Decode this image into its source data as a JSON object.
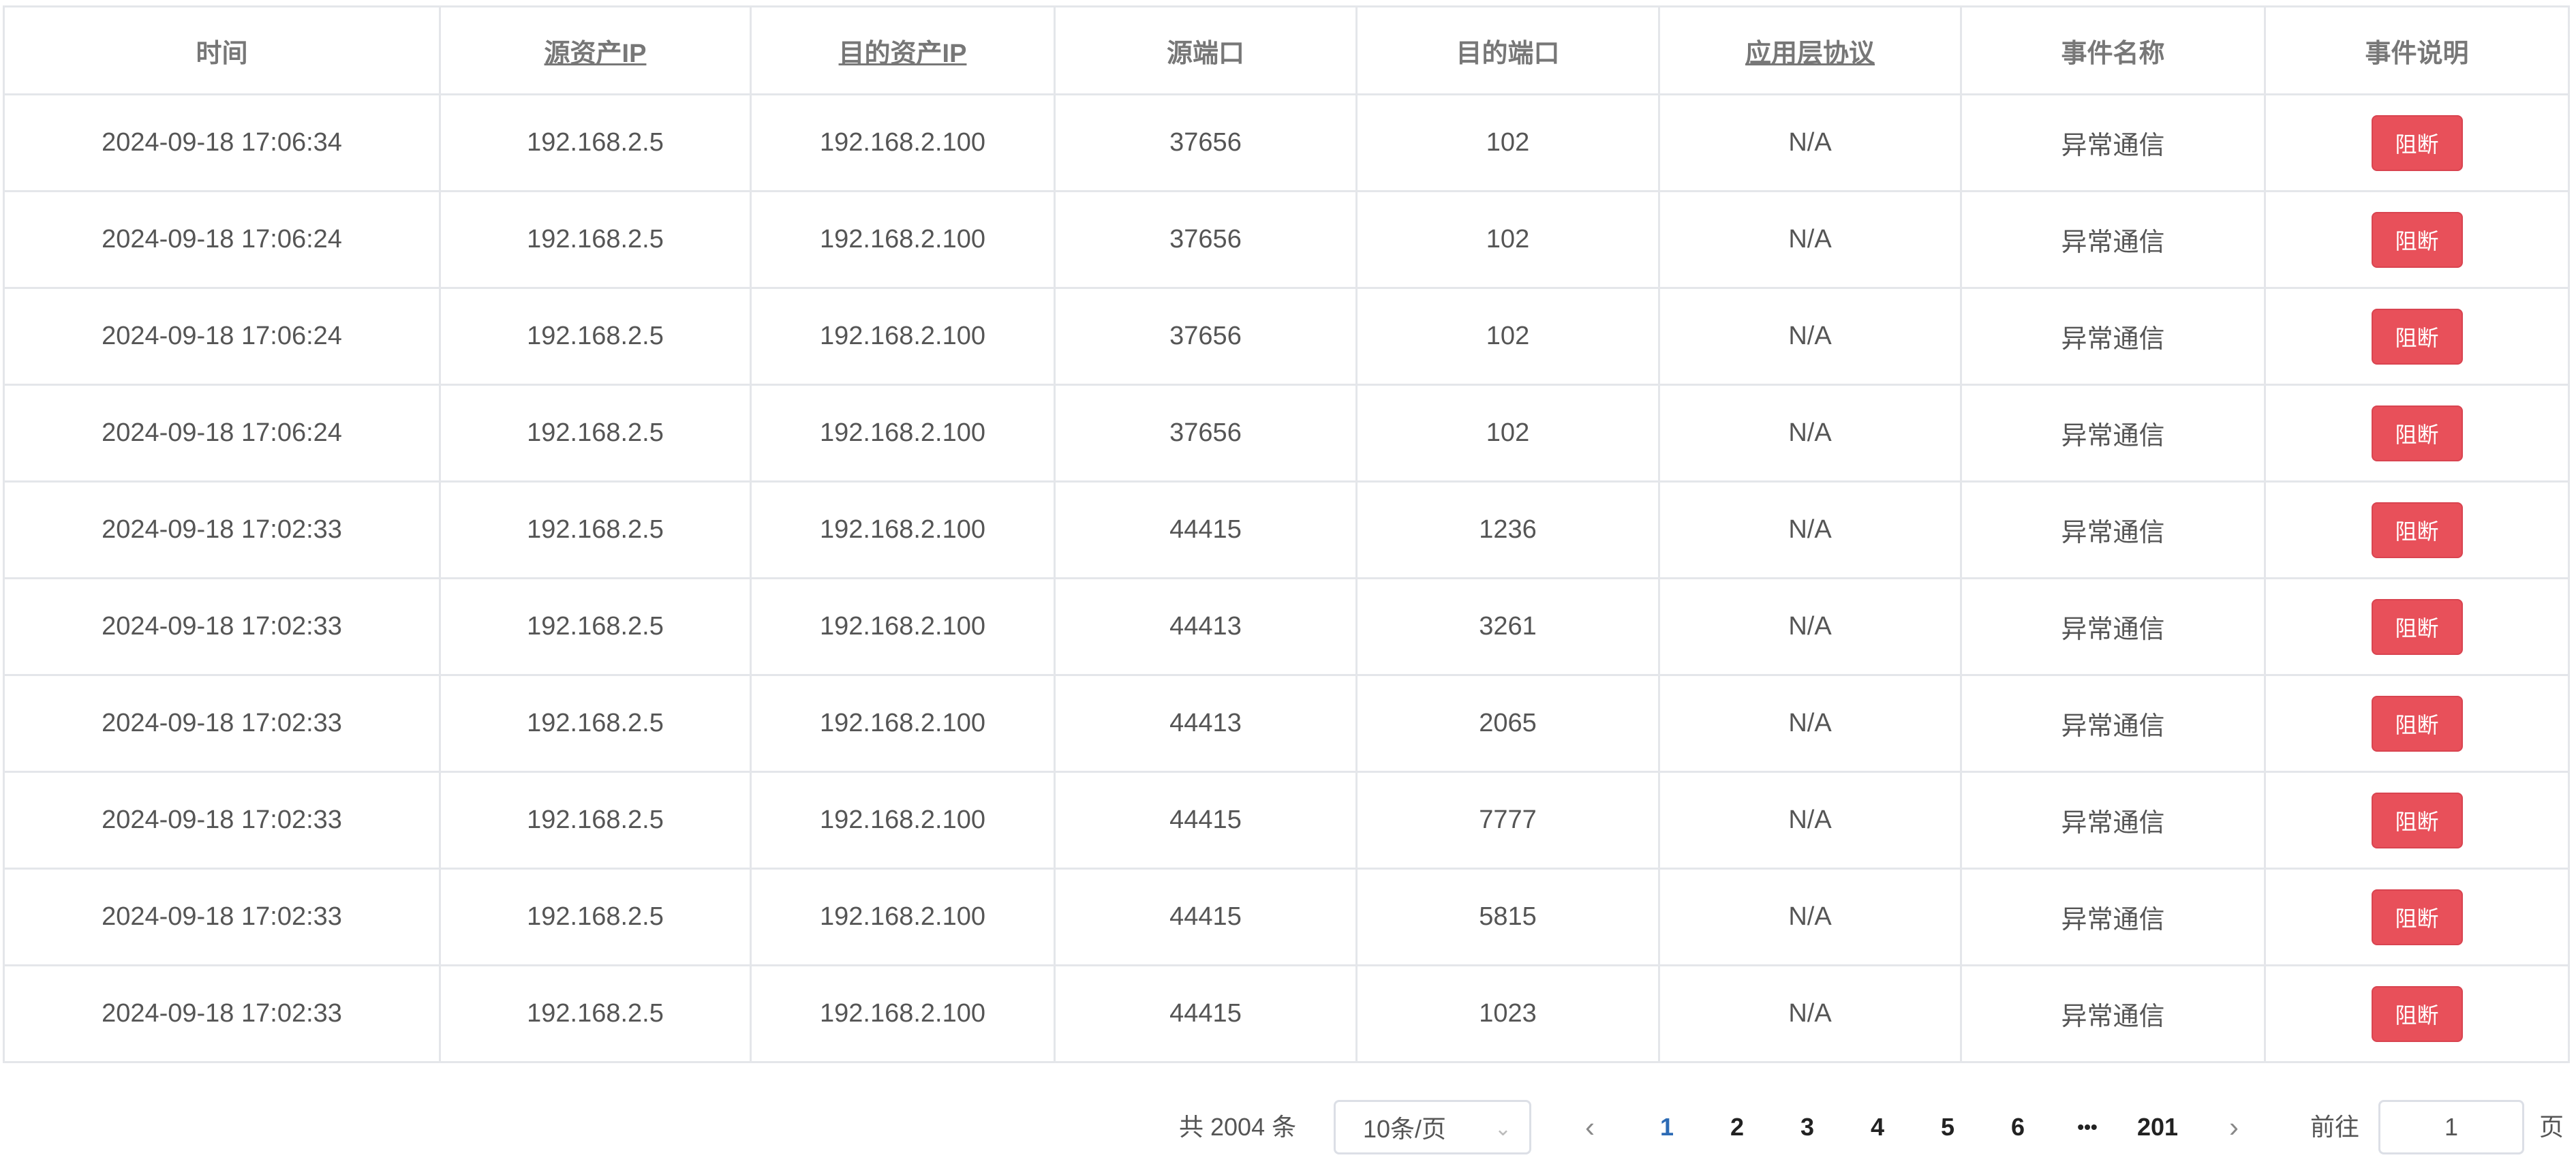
{
  "table": {
    "headers": [
      "时间",
      "源资产IP",
      "目的资产IP",
      "源端口",
      "目的端口",
      "应用层协议",
      "事件名称",
      "事件说明"
    ],
    "rows": [
      [
        "2024-09-18 17:06:34",
        "192.168.2.5",
        "192.168.2.100",
        "37656",
        "102",
        "N/A",
        "异常通信",
        "阻断"
      ],
      [
        "2024-09-18 17:06:24",
        "192.168.2.5",
        "192.168.2.100",
        "37656",
        "102",
        "N/A",
        "异常通信",
        "阻断"
      ],
      [
        "2024-09-18 17:06:24",
        "192.168.2.5",
        "192.168.2.100",
        "37656",
        "102",
        "N/A",
        "异常通信",
        "阻断"
      ],
      [
        "2024-09-18 17:06:24",
        "192.168.2.5",
        "192.168.2.100",
        "37656",
        "102",
        "N/A",
        "异常通信",
        "阻断"
      ],
      [
        "2024-09-18 17:02:33",
        "192.168.2.5",
        "192.168.2.100",
        "44415",
        "1236",
        "N/A",
        "异常通信",
        "阻断"
      ],
      [
        "2024-09-18 17:02:33",
        "192.168.2.5",
        "192.168.2.100",
        "44413",
        "3261",
        "N/A",
        "异常通信",
        "阻断"
      ],
      [
        "2024-09-18 17:02:33",
        "192.168.2.5",
        "192.168.2.100",
        "44413",
        "2065",
        "N/A",
        "异常通信",
        "阻断"
      ],
      [
        "2024-09-18 17:02:33",
        "192.168.2.5",
        "192.168.2.100",
        "44415",
        "7777",
        "N/A",
        "异常通信",
        "阻断"
      ],
      [
        "2024-09-18 17:02:33",
        "192.168.2.5",
        "192.168.2.100",
        "44415",
        "5815",
        "N/A",
        "异常通信",
        "阻断"
      ],
      [
        "2024-09-18 17:02:33",
        "192.168.2.5",
        "192.168.2.100",
        "44415",
        "1023",
        "N/A",
        "异常通信",
        "阻断"
      ]
    ]
  },
  "pagination": {
    "total": "共 2004 条",
    "page_size": "10条/页",
    "pages": [
      "1",
      "2",
      "3",
      "4",
      "5",
      "6",
      "•••",
      "201"
    ],
    "current": "1",
    "goto_label": "前往",
    "goto_value": "1",
    "page_unit": "页"
  },
  "colors": {
    "block_button": "#e8505a",
    "active_page": "#2d6bb5"
  }
}
